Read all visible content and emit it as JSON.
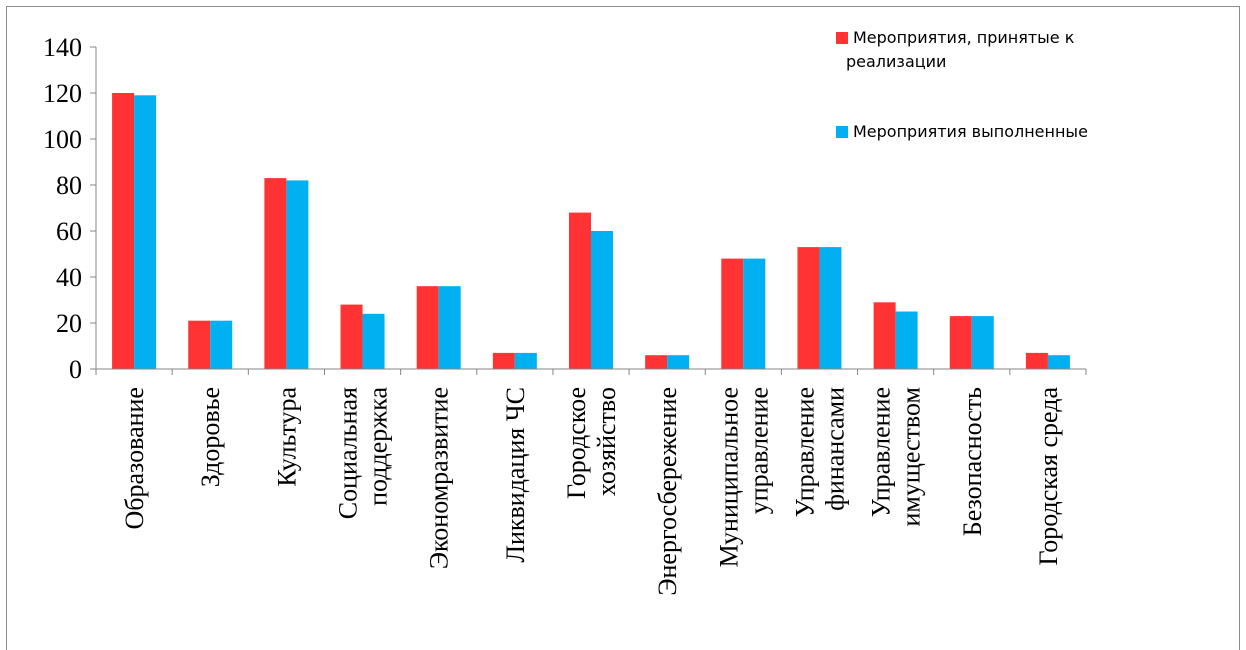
{
  "chart_data": {
    "type": "bar",
    "title": "",
    "xlabel": "",
    "ylabel": "",
    "ylim": [
      0,
      140
    ],
    "yticks": [
      0,
      20,
      40,
      60,
      80,
      100,
      120,
      140
    ],
    "grid": false,
    "legend_position": "top-right",
    "categories": [
      [
        "Образование"
      ],
      [
        "Здоровье"
      ],
      [
        "Культура"
      ],
      [
        "Социальная",
        "поддержка"
      ],
      [
        "Экономразвитие"
      ],
      [
        "Ликвидация ЧС"
      ],
      [
        "Городское",
        "хозяйство"
      ],
      [
        "Энергосбережение"
      ],
      [
        "Муниципальное",
        "управление"
      ],
      [
        "Управление",
        "финансами"
      ],
      [
        "Управление",
        "имуществом"
      ],
      [
        "Безопасность"
      ],
      [
        "Городская среда"
      ]
    ],
    "series": [
      {
        "name_lines": [
          "Мероприятия, принятые к",
          "реализации"
        ],
        "color": "#ff3333",
        "values": [
          120,
          21,
          83,
          28,
          36,
          7,
          68,
          6,
          48,
          53,
          29,
          23,
          7
        ]
      },
      {
        "name_lines": [
          "Мероприятия выполненные"
        ],
        "color": "#00b0f0",
        "values": [
          119,
          21,
          82,
          24,
          36,
          7,
          60,
          6,
          48,
          53,
          25,
          23,
          6
        ]
      }
    ]
  }
}
